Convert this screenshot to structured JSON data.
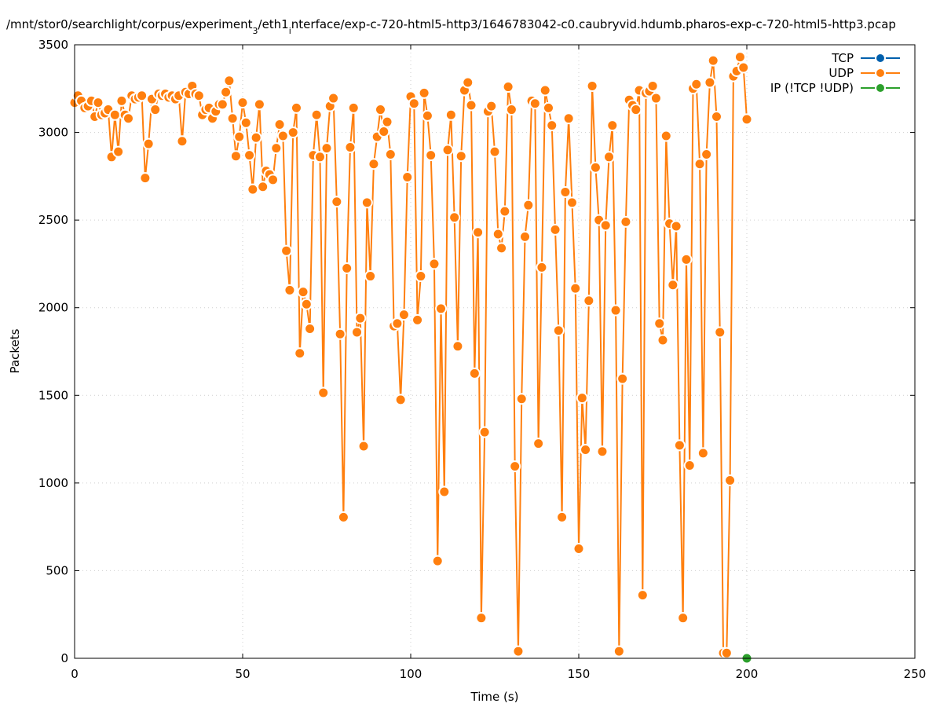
{
  "chart_data": {
    "type": "line",
    "title": "/mnt/stor0/searchlight/corpus/experiment_3/eth1_interface/exp-c-720-html5-http3/1646783042-c0.caubryvid.hdumb.pharos-exp-c-720-html5-http3.pcap",
    "title_parts": {
      "a": "/mnt/stor0/searchlight/corpus/experiment",
      "sub1": "3",
      "b": "/eth1",
      "sub2": "i",
      "c": "nterface/exp-c-720-html5-http3/1646783042-c0.caubryvid.hdumb.pharos-exp-c-720-html5-http3.pcap"
    },
    "xlabel": "Time (s)",
    "ylabel": "Packets",
    "xlim": [
      0,
      250
    ],
    "ylim": [
      0,
      3500
    ],
    "xticks": [
      0,
      50,
      100,
      150,
      200,
      250
    ],
    "yticks": [
      0,
      500,
      1000,
      1500,
      2000,
      2500,
      3000,
      3500
    ],
    "grid": true,
    "legend_position": "top-right",
    "series": [
      {
        "name": "TCP",
        "color": "#0060ad",
        "x": [],
        "y": []
      },
      {
        "name": "UDP",
        "color": "#ff7f0e",
        "x": [
          0,
          1,
          2,
          3,
          4,
          5,
          6,
          7,
          8,
          9,
          10,
          11,
          12,
          13,
          14,
          15,
          16,
          17,
          18,
          19,
          20,
          21,
          22,
          23,
          24,
          25,
          26,
          27,
          28,
          29,
          30,
          31,
          32,
          33,
          34,
          35,
          36,
          37,
          38,
          39,
          40,
          41,
          42,
          43,
          44,
          45,
          46,
          47,
          48,
          49,
          50,
          51,
          52,
          53,
          54,
          55,
          56,
          57,
          58,
          59,
          60,
          61,
          62,
          63,
          64,
          65,
          66,
          67,
          68,
          69,
          70,
          71,
          72,
          73,
          74,
          75,
          76,
          77,
          78,
          79,
          80,
          81,
          82,
          83,
          84,
          85,
          86,
          87,
          88,
          89,
          90,
          91,
          92,
          93,
          94,
          95,
          96,
          97,
          98,
          99,
          100,
          101,
          102,
          103,
          104,
          105,
          106,
          107,
          108,
          109,
          110,
          111,
          112,
          113,
          114,
          115,
          116,
          117,
          118,
          119,
          120,
          121,
          122,
          123,
          124,
          125,
          126,
          127,
          128,
          129,
          130,
          131,
          132,
          133,
          134,
          135,
          136,
          137,
          138,
          139,
          140,
          141,
          142,
          143,
          144,
          145,
          146,
          147,
          148,
          149,
          150,
          151,
          152,
          153,
          154,
          155,
          156,
          157,
          158,
          159,
          160,
          161,
          162,
          163,
          164,
          165,
          166,
          167,
          168,
          169,
          170,
          171,
          172,
          173,
          174,
          175,
          176,
          177,
          178,
          179,
          180,
          181,
          182,
          183,
          184,
          185,
          186,
          187,
          188,
          189,
          190,
          191,
          192,
          193,
          194,
          195,
          196,
          197,
          198,
          199,
          200
        ],
        "y": [
          3170,
          3210,
          3180,
          3140,
          3150,
          3180,
          3090,
          3170,
          3100,
          3110,
          3130,
          2860,
          3100,
          2890,
          3180,
          3100,
          3080,
          3210,
          3190,
          3200,
          3210,
          2740,
          2935,
          3190,
          3130,
          3220,
          3210,
          3220,
          3200,
          3210,
          3190,
          3210,
          2950,
          3230,
          3220,
          3265,
          3220,
          3210,
          3100,
          3130,
          3140,
          3080,
          3120,
          3160,
          3160,
          3230,
          3295,
          3080,
          2865,
          2975,
          3170,
          3055,
          2870,
          2675,
          2970,
          3160,
          2690,
          2780,
          2760,
          2730,
          2910,
          3045,
          2980,
          2325,
          2100,
          3000,
          3140,
          1740,
          2090,
          2020,
          1880,
          2870,
          3100,
          2860,
          1515,
          2910,
          3150,
          3195,
          2605,
          1850,
          805,
          2225,
          2915,
          3140,
          1860,
          1940,
          1210,
          2600,
          2180,
          2820,
          2975,
          3130,
          3005,
          3060,
          2875,
          1895,
          1910,
          1475,
          1960,
          2745,
          3205,
          3165,
          1930,
          2180,
          3225,
          3095,
          2870,
          2250,
          555,
          1995,
          950,
          2900,
          3100,
          2515,
          1780,
          2865,
          3240,
          3285,
          3155,
          1625,
          2430,
          230,
          1290,
          3120,
          3150,
          2890,
          2420,
          2340,
          2550,
          3260,
          3130,
          1095,
          40,
          1480,
          2405,
          2585,
          3180,
          3165,
          1225,
          2230,
          3240,
          3140,
          3040,
          2445,
          1870,
          805,
          2660,
          3080,
          2600,
          2110,
          625,
          1485,
          1190,
          2040,
          3265,
          2800,
          2500,
          1180,
          2470,
          2860,
          3040,
          1985,
          40,
          1595,
          2490,
          3185,
          3155,
          3130,
          3240,
          360,
          3225,
          3235,
          3265,
          3195,
          1910,
          1815,
          2980,
          2480,
          2130,
          2465,
          1215,
          230,
          2275,
          1100,
          3250,
          3275,
          2820,
          1170,
          2875,
          3285,
          3410,
          3090,
          1860,
          30,
          30,
          1015,
          3320,
          3350,
          3430,
          3370,
          3075
        ]
      },
      {
        "name": "IP (!TCP  !UDP)",
        "color": "#2ca02c",
        "x": [
          200
        ],
        "y": [
          0
        ]
      }
    ]
  }
}
